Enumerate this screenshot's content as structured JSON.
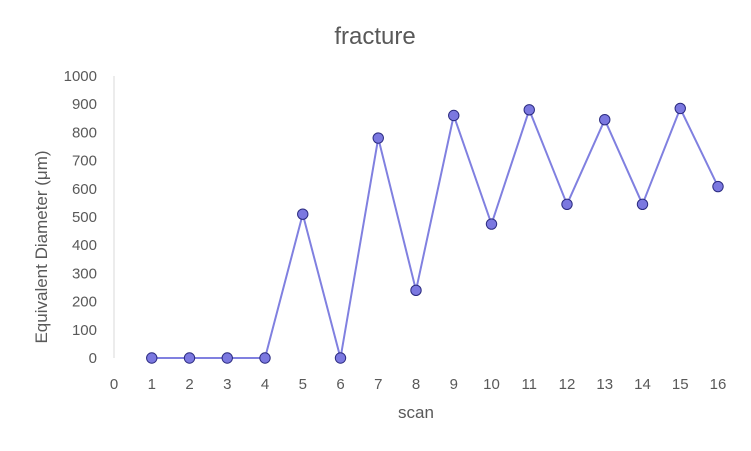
{
  "chart_data": {
    "type": "line",
    "title": "fracture",
    "xlabel": "scan",
    "ylabel": "Equivalent Diameter (μm)",
    "xlim": [
      0,
      16
    ],
    "ylim": [
      0,
      1000
    ],
    "x_ticks": [
      0,
      1,
      2,
      3,
      4,
      5,
      6,
      7,
      8,
      9,
      10,
      11,
      12,
      13,
      14,
      15,
      16
    ],
    "y_ticks": [
      0,
      100,
      200,
      300,
      400,
      500,
      600,
      700,
      800,
      900,
      1000
    ],
    "grid": false,
    "legend": "none",
    "series": [
      {
        "x": [
          1,
          2,
          3,
          4,
          5,
          6,
          7,
          8,
          9,
          10,
          11,
          12,
          13,
          14,
          15,
          16
        ],
        "y": [
          0,
          0,
          0,
          0,
          510,
          0,
          780,
          240,
          860,
          475,
          880,
          545,
          845,
          545,
          885,
          608
        ],
        "line_color": "#8080e0",
        "marker_color": "#7b78e0",
        "marker_edge_color": "#2b2b80"
      }
    ]
  }
}
